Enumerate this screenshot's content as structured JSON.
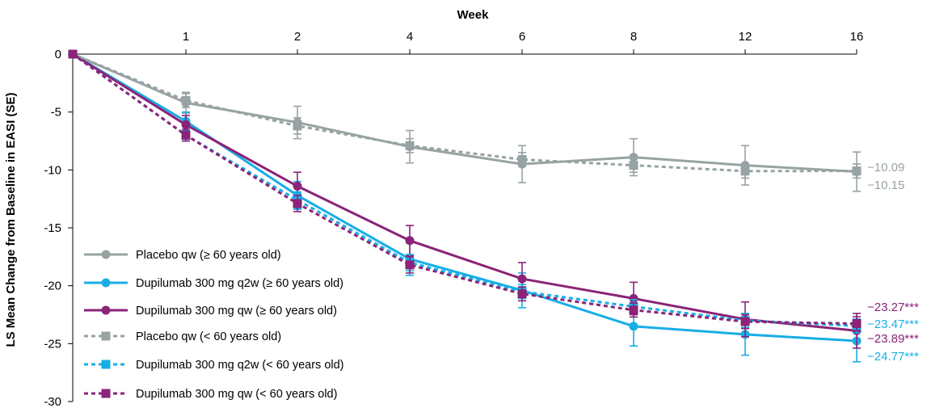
{
  "chart_data": {
    "type": "line",
    "title": "",
    "xlabel": "Week",
    "ylabel": "LS Mean Change from Baseline in EASI (SE)",
    "x_ticks": [
      "1",
      "2",
      "4",
      "6",
      "8",
      "12",
      "16"
    ],
    "x": [
      0,
      1,
      2,
      4,
      6,
      8,
      12,
      16
    ],
    "ylim": [
      -30,
      0
    ],
    "y_ticks": [
      "0",
      "-5",
      "-10",
      "-15",
      "-20",
      "-25",
      "-30"
    ],
    "grid": false,
    "legend_position": "bottom-left",
    "series": [
      {
        "name": "Placebo qw (≥ 60 years old)",
        "color": "#97a3a3",
        "dash": "solid",
        "marker": "circle",
        "values": [
          0,
          -4.2,
          -5.9,
          -8.0,
          -9.5,
          -8.9,
          -9.6,
          -10.15
        ],
        "se": [
          0,
          0.9,
          1.4,
          1.4,
          1.6,
          1.6,
          1.7,
          1.7
        ],
        "end_label": "−10.15"
      },
      {
        "name": "Dupilumab 300 mg q2w (≥ 60 years old)",
        "color": "#18aee5",
        "dash": "solid",
        "marker": "circle",
        "values": [
          0,
          -5.8,
          -12.2,
          -17.7,
          -20.4,
          -23.5,
          -24.2,
          -24.77
        ],
        "se": [
          0,
          0.8,
          1.2,
          1.4,
          1.5,
          1.7,
          1.8,
          1.8
        ],
        "end_label": "−24.77***"
      },
      {
        "name": "Dupilumab 300 mg qw (≥ 60 years old)",
        "color": "#8b2378",
        "dash": "solid",
        "marker": "circle",
        "values": [
          0,
          -6.1,
          -11.4,
          -16.1,
          -19.4,
          -21.1,
          -22.9,
          -23.89
        ],
        "se": [
          0,
          0.8,
          1.2,
          1.3,
          1.4,
          1.4,
          1.5,
          1.5
        ],
        "end_label": "−23.89***"
      },
      {
        "name": "Placebo qw (< 60 years old)",
        "color": "#97a3a3",
        "dash": "dashed",
        "marker": "square",
        "values": [
          0,
          -4.0,
          -6.2,
          -7.9,
          -9.1,
          -9.6,
          -10.1,
          -10.09
        ],
        "se": [
          0,
          0.6,
          0.7,
          0.6,
          0.6,
          0.6,
          0.6,
          0.6
        ],
        "end_label": "−10.09"
      },
      {
        "name": "Dupilumab 300 mg q2w (< 60 years old)",
        "color": "#18aee5",
        "dash": "dashed",
        "marker": "square",
        "values": [
          0,
          -7.0,
          -12.6,
          -18.0,
          -20.5,
          -21.8,
          -23.0,
          -23.47
        ],
        "se": [
          0,
          0.5,
          0.7,
          0.7,
          0.6,
          0.6,
          0.6,
          0.6
        ],
        "end_label": "−23.47***"
      },
      {
        "name": "Dupilumab 300 mg qw (< 60 years old)",
        "color": "#8b2378",
        "dash": "dashed",
        "marker": "square",
        "values": [
          0,
          -7.0,
          -12.9,
          -18.2,
          -20.7,
          -22.1,
          -23.1,
          -23.27
        ],
        "se": [
          0,
          0.5,
          0.7,
          0.7,
          0.6,
          0.6,
          0.6,
          0.6
        ],
        "end_label": "−23.27***"
      }
    ]
  }
}
